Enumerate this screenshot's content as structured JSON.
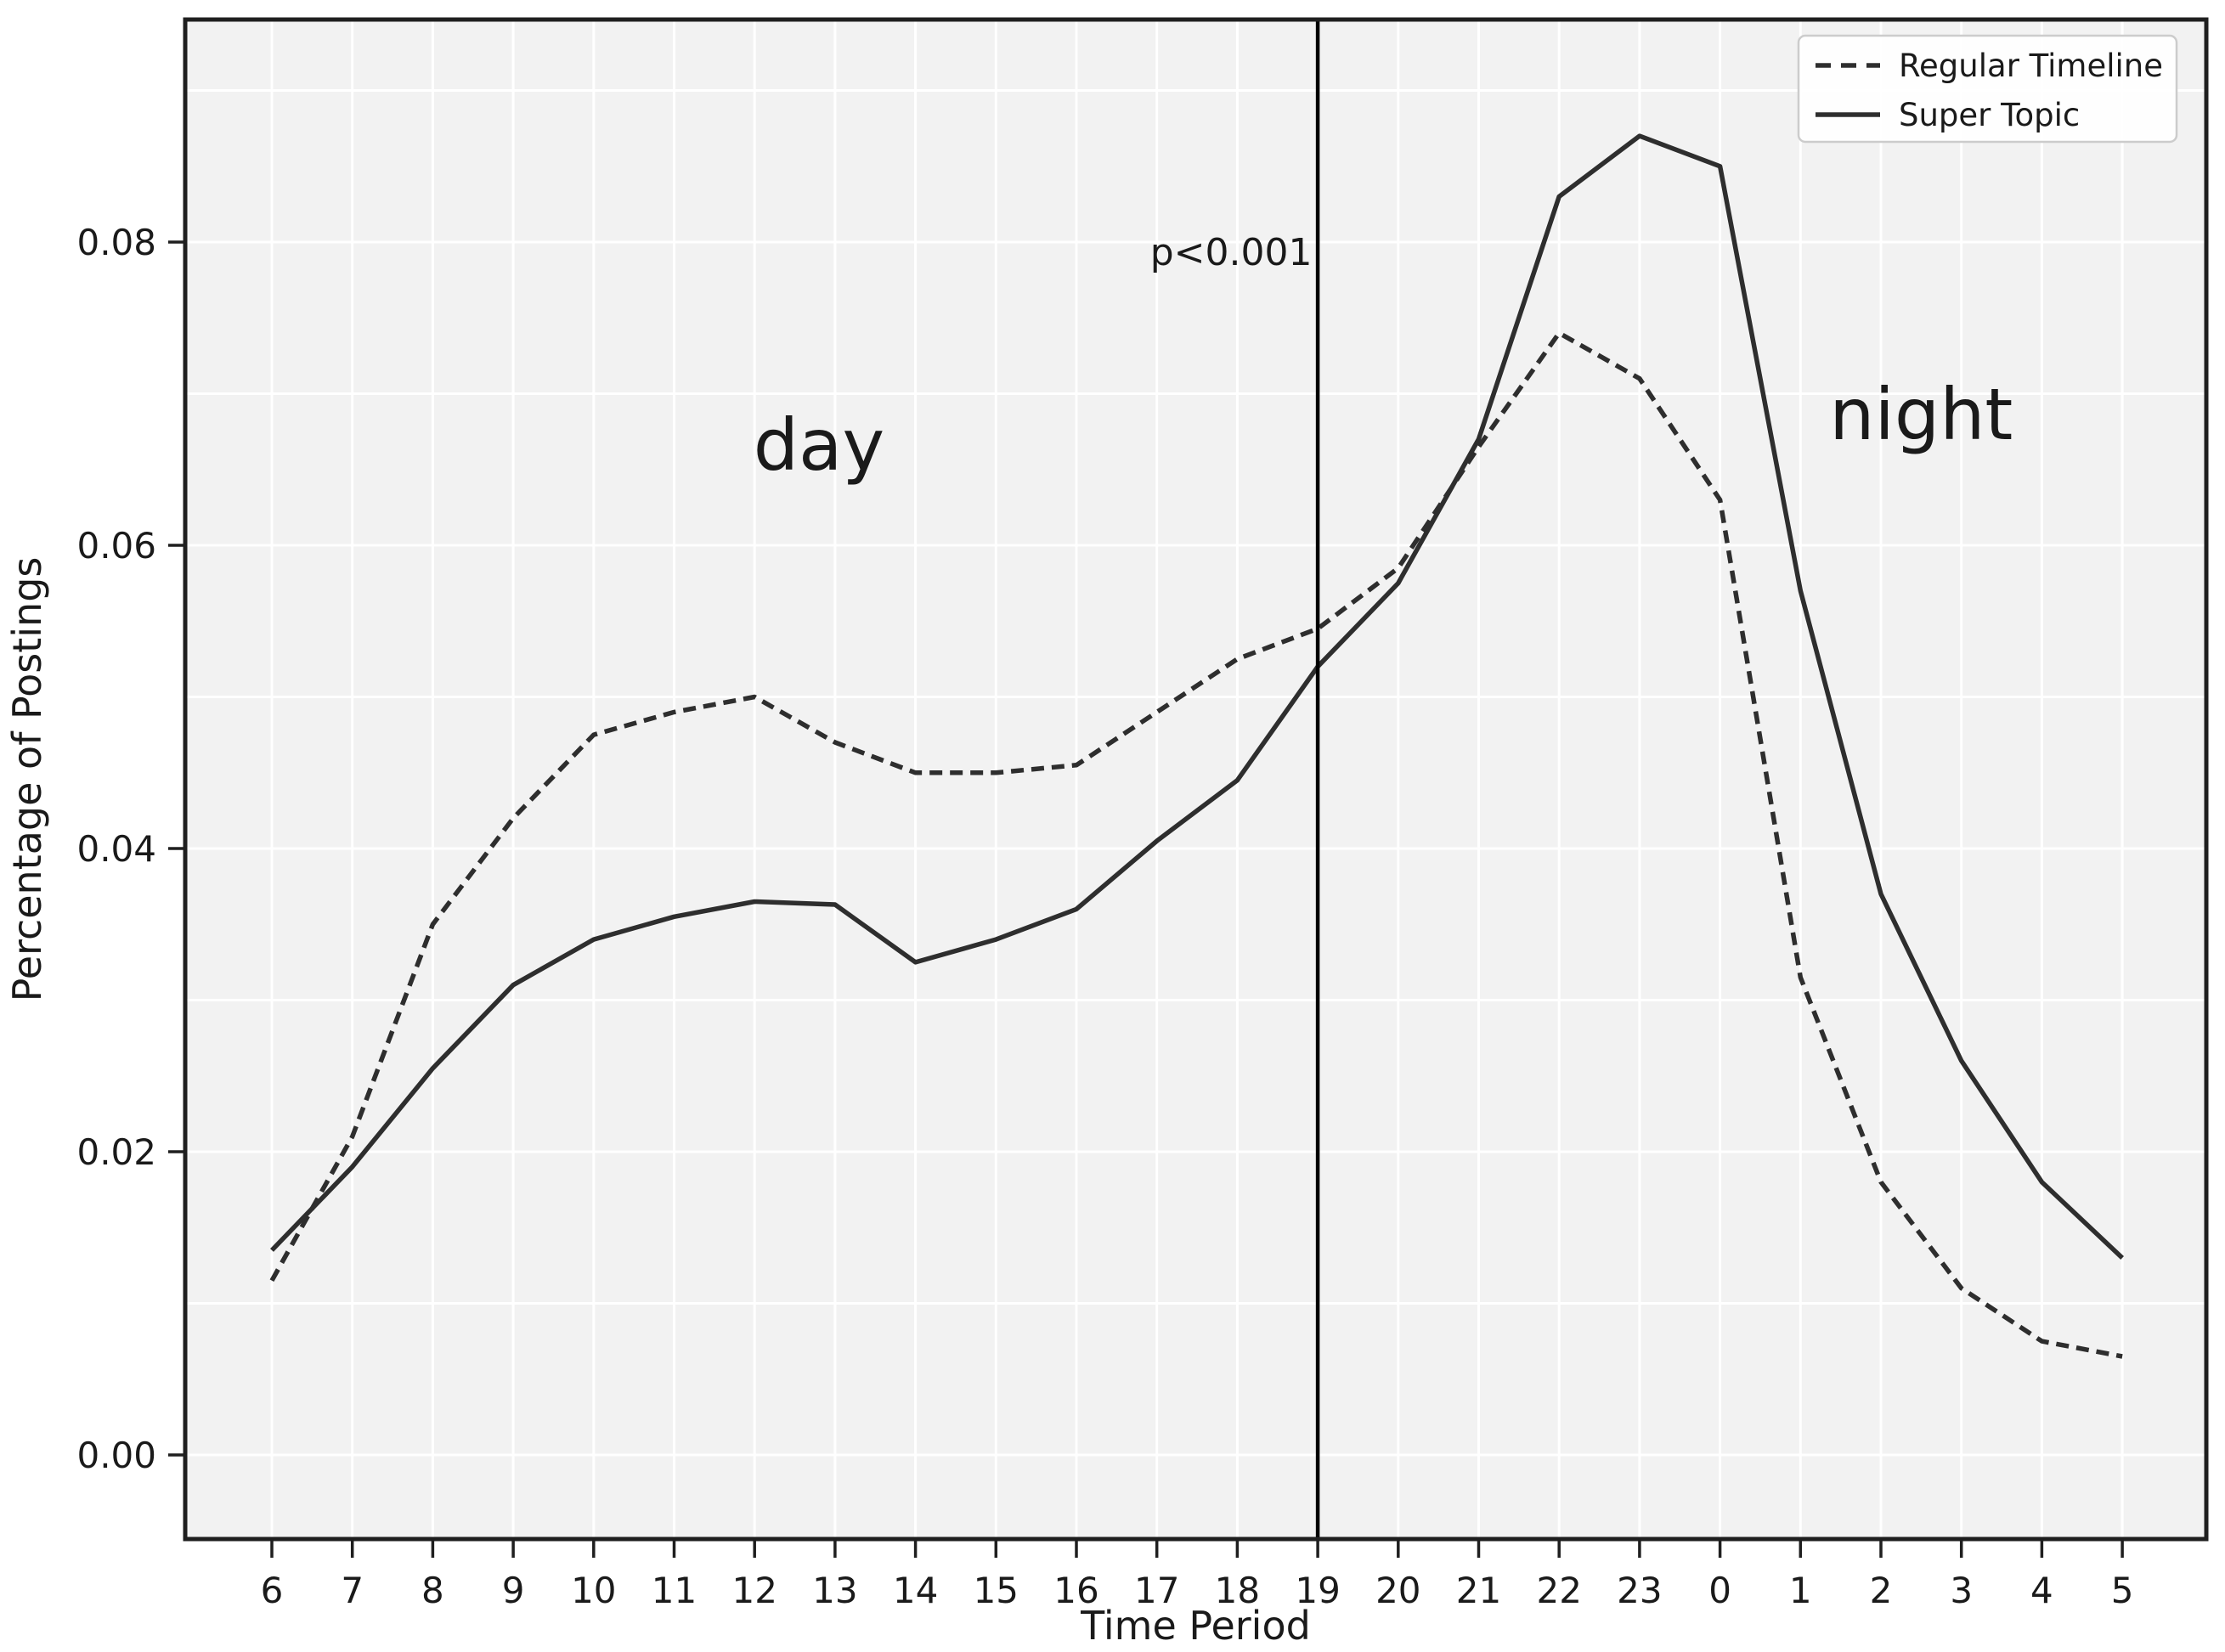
{
  "figure": {
    "background": "#ffffff",
    "plot_background": "#f2f2f2",
    "grid_color": "#ffffff",
    "spine_color": "#1f1f1f",
    "line_color": "#2e2e2e",
    "vline_color": "#000000",
    "text_color": "#1a1a1a",
    "legend_border_color": "#cccccc",
    "legend_background": "#ffffff"
  },
  "chart_data": {
    "type": "line",
    "title": "",
    "xlabel": "Time Period",
    "ylabel": "Percentage of Postings",
    "categories": [
      "6",
      "7",
      "8",
      "9",
      "10",
      "11",
      "12",
      "13",
      "14",
      "15",
      "16",
      "17",
      "18",
      "19",
      "20",
      "21",
      "22",
      "23",
      "0",
      "1",
      "2",
      "3",
      "4",
      "5"
    ],
    "series": [
      {
        "name": "Regular Timeline",
        "style": "dashed",
        "values": [
          0.0115,
          0.021,
          0.035,
          0.042,
          0.0475,
          0.049,
          0.05,
          0.047,
          0.045,
          0.045,
          0.0455,
          0.049,
          0.0525,
          0.0545,
          0.0585,
          0.0665,
          0.074,
          0.071,
          0.063,
          0.0315,
          0.018,
          0.011,
          0.0075,
          0.0065
        ]
      },
      {
        "name": "Super Topic",
        "style": "solid",
        "values": [
          0.0135,
          0.019,
          0.0255,
          0.031,
          0.034,
          0.0355,
          0.0365,
          0.0363,
          0.0325,
          0.034,
          0.036,
          0.0405,
          0.0445,
          0.052,
          0.0575,
          0.067,
          0.083,
          0.087,
          0.085,
          0.057,
          0.037,
          0.026,
          0.018,
          0.013
        ]
      }
    ],
    "ylim": [
      -0.0055,
      0.0947
    ],
    "ytick_values": [
      0.0,
      0.02,
      0.04,
      0.06,
      0.08
    ],
    "ytick_labels": [
      "0.00",
      "0.02",
      "0.04",
      "0.06",
      "0.08"
    ],
    "minor_grid_step": 0.01,
    "grid": "on",
    "legend_position": "upper right",
    "vline_x_category": "19",
    "annotations": [
      {
        "text": "p<0.001",
        "x_index": 12.93,
        "y": 0.0785,
        "align": "end",
        "size": 44
      },
      {
        "text": "day",
        "x_index": 6.8,
        "y": 0.065,
        "align": "middle",
        "size": 84
      },
      {
        "text": "night",
        "x_index": 20.5,
        "y": 0.067,
        "align": "middle",
        "size": 84
      }
    ]
  },
  "legend": {
    "items": [
      {
        "label": "Regular Timeline",
        "sample": "dashed-line"
      },
      {
        "label": "Super Topic",
        "sample": "solid-line"
      }
    ]
  }
}
